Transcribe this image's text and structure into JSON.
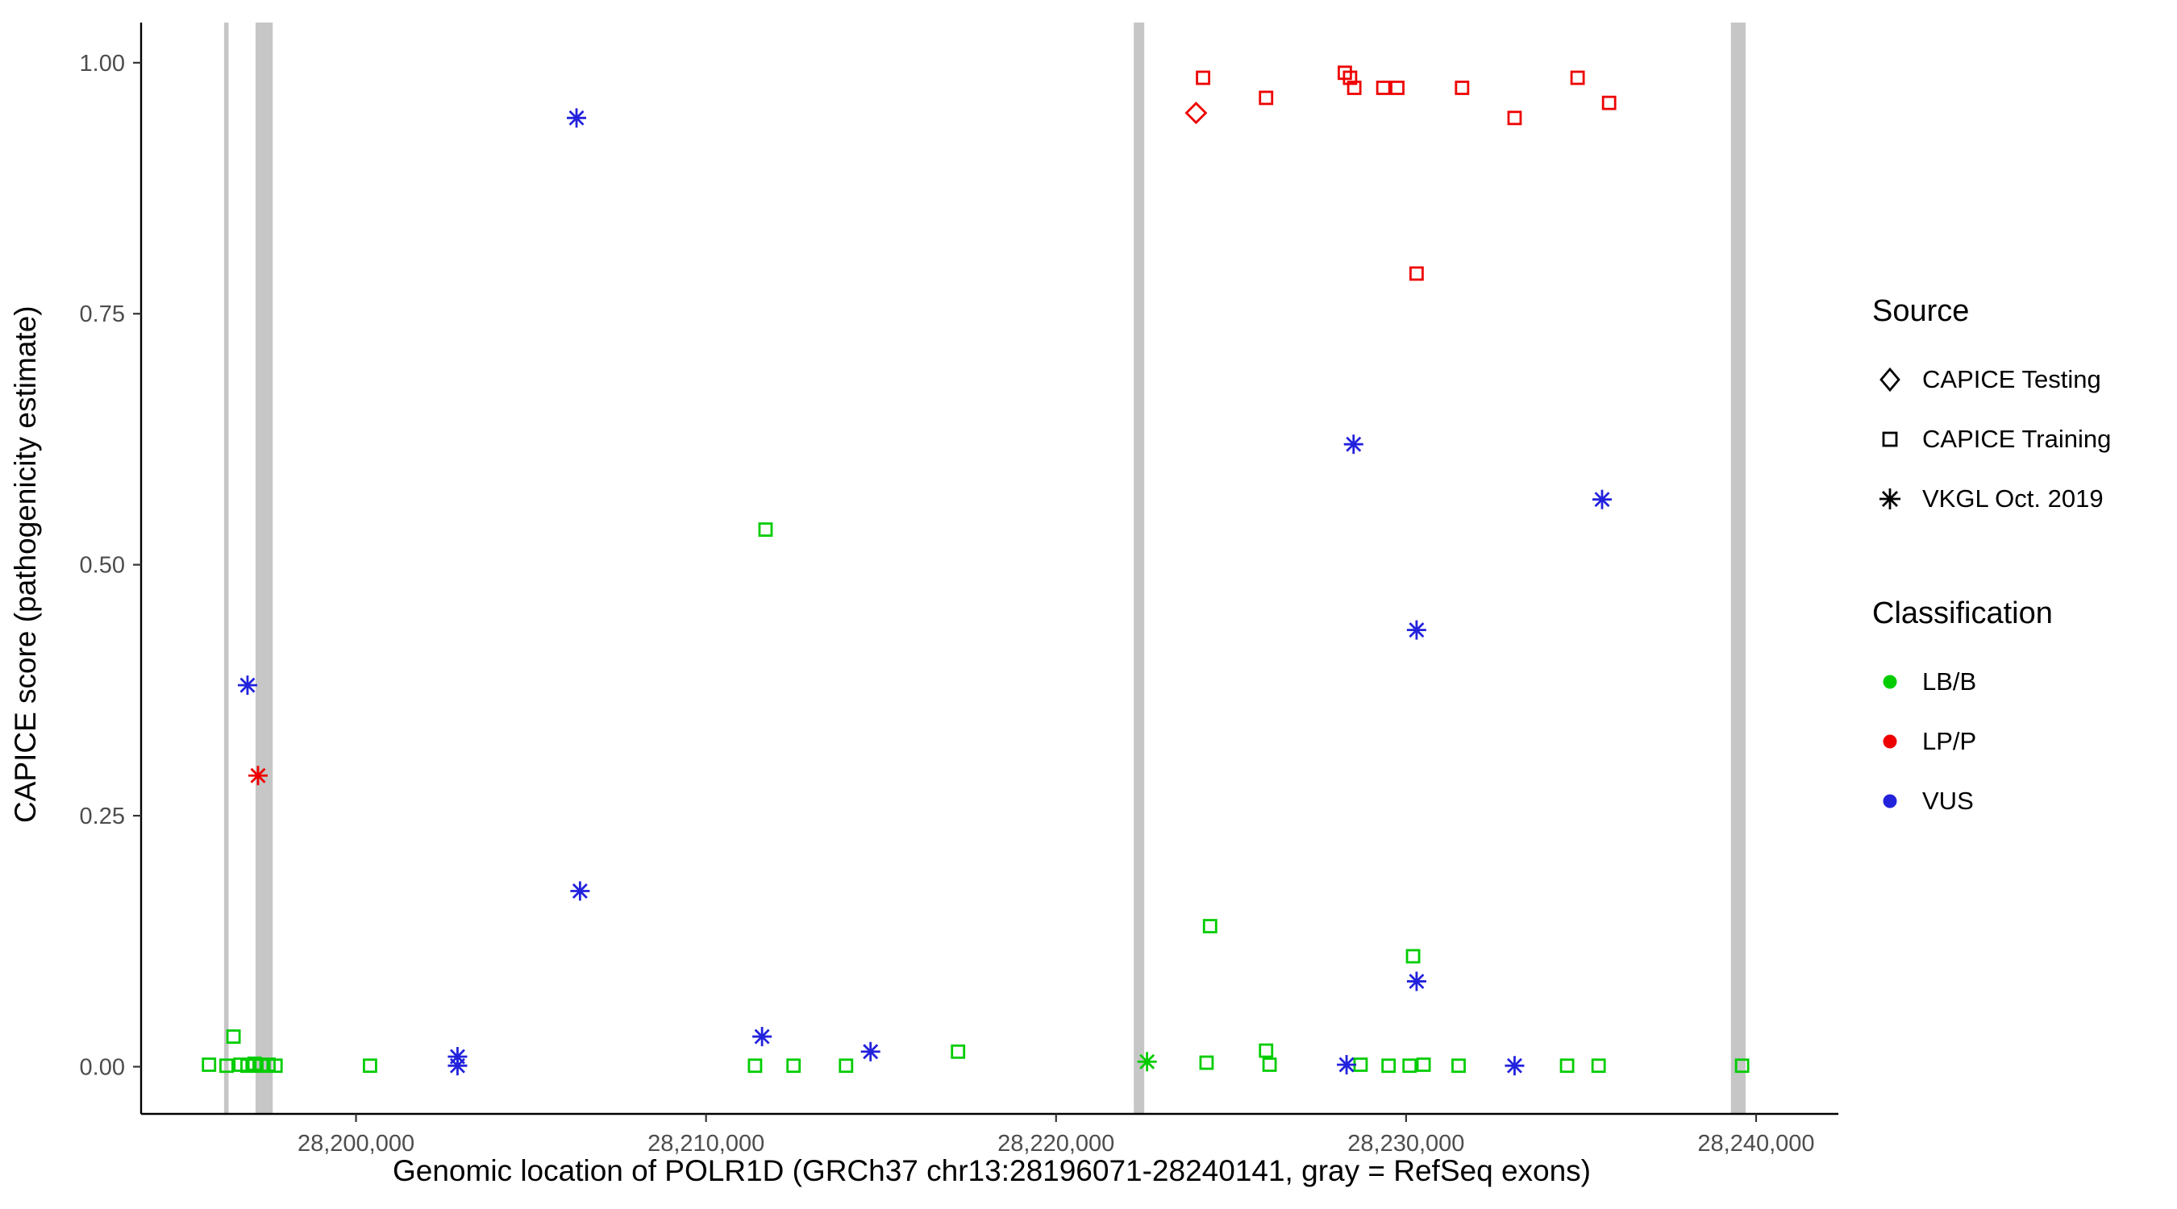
{
  "legend": {
    "source": {
      "title": "Source",
      "items": [
        {
          "label": "CAPICE Testing",
          "shape": "diamond"
        },
        {
          "label": "CAPICE Training",
          "shape": "square"
        },
        {
          "label": "VKGL Oct. 2019",
          "shape": "asterisk"
        }
      ]
    },
    "classification": {
      "title": "Classification",
      "items": [
        {
          "label": "LB/B",
          "color": "#00CC00"
        },
        {
          "label": "LP/P",
          "color": "#EE0000"
        },
        {
          "label": "VUS",
          "color": "#2222DD"
        }
      ]
    }
  },
  "chart_data": {
    "type": "scatter",
    "title": "",
    "xlabel": "Genomic location of POLR1D (GRCh37 chr13:28196071-28240141, gray = RefSeq exons)",
    "ylabel": "CAPICE score (pathogenicity estimate)",
    "xlim": [
      28193860,
      28242350
    ],
    "ylim": [
      -0.047,
      1.04
    ],
    "x_ticks": [
      28200000,
      28210000,
      28220000,
      28230000,
      28240000
    ],
    "x_tick_labels": [
      "28,200,000",
      "28,210,000",
      "28,220,000",
      "28,230,000",
      "28,240,000"
    ],
    "y_ticks": [
      0,
      0.25,
      0.5,
      0.75,
      1.0
    ],
    "y_tick_labels": [
      "0.00",
      "0.25",
      "0.50",
      "0.75",
      "1.00"
    ],
    "grid": false,
    "legend_position": "right",
    "exon_color": "#c6c6c6",
    "exons": [
      [
        28196230,
        28196360
      ],
      [
        28197130,
        28197620
      ],
      [
        28222220,
        28222520
      ],
      [
        28239280,
        28239700
      ]
    ],
    "series": [
      {
        "name": "CAPICE Testing | LP/P",
        "source": "CAPICE Testing",
        "classification": "LP/P",
        "shape": "diamond",
        "color": "#EE0000",
        "points": [
          [
            28224000,
            0.95
          ]
        ]
      },
      {
        "name": "CAPICE Training | LP/P",
        "source": "CAPICE Training",
        "classification": "LP/P",
        "shape": "square",
        "color": "#EE0000",
        "points": [
          [
            28224200,
            0.985
          ],
          [
            28226000,
            0.965
          ],
          [
            28228250,
            0.99
          ],
          [
            28228400,
            0.985
          ],
          [
            28228520,
            0.975
          ],
          [
            28229350,
            0.975
          ],
          [
            28229750,
            0.975
          ],
          [
            28231600,
            0.975
          ],
          [
            28233100,
            0.945
          ],
          [
            28234900,
            0.985
          ],
          [
            28235800,
            0.96
          ],
          [
            28230300,
            0.79
          ]
        ]
      },
      {
        "name": "CAPICE Training | LB/B",
        "source": "CAPICE Training",
        "classification": "LB/B",
        "shape": "square",
        "color": "#00CC00",
        "points": [
          [
            28211700,
            0.535
          ],
          [
            28224400,
            0.14
          ],
          [
            28230200,
            0.11
          ],
          [
            28195800,
            0.002
          ],
          [
            28196300,
            0.001
          ],
          [
            28196500,
            0.03
          ],
          [
            28196700,
            0.002
          ],
          [
            28196900,
            0.001
          ],
          [
            28197100,
            0.003
          ],
          [
            28197300,
            0.001
          ],
          [
            28197500,
            0.002
          ],
          [
            28197700,
            0.001
          ],
          [
            28200400,
            0.001
          ],
          [
            28211400,
            0.001
          ],
          [
            28212500,
            0.001
          ],
          [
            28214000,
            0.001
          ],
          [
            28217200,
            0.015
          ],
          [
            28224300,
            0.004
          ],
          [
            28226000,
            0.016
          ],
          [
            28226100,
            0.002
          ],
          [
            28228700,
            0.002
          ],
          [
            28229500,
            0.001
          ],
          [
            28230100,
            0.001
          ],
          [
            28230500,
            0.002
          ],
          [
            28231500,
            0.001
          ],
          [
            28234600,
            0.001
          ],
          [
            28235500,
            0.001
          ],
          [
            28239600,
            0.001
          ]
        ]
      },
      {
        "name": "VKGL Oct. 2019 | VUS",
        "source": "VKGL Oct. 2019",
        "classification": "VUS",
        "shape": "asterisk",
        "color": "#2222DD",
        "points": [
          [
            28206300,
            0.945
          ],
          [
            28196900,
            0.38
          ],
          [
            28206400,
            0.175
          ],
          [
            28228500,
            0.62
          ],
          [
            28235600,
            0.565
          ],
          [
            28230300,
            0.435
          ],
          [
            28230300,
            0.085
          ],
          [
            28211600,
            0.03
          ],
          [
            28214700,
            0.015
          ],
          [
            28202900,
            0.01
          ],
          [
            28202900,
            0.001
          ],
          [
            28228300,
            0.002
          ],
          [
            28233100,
            0.001
          ]
        ]
      },
      {
        "name": "VKGL Oct. 2019 | LP/P",
        "source": "VKGL Oct. 2019",
        "classification": "LP/P",
        "shape": "asterisk",
        "color": "#EE0000",
        "points": [
          [
            28197200,
            0.29
          ]
        ]
      },
      {
        "name": "VKGL Oct. 2019 | LB/B",
        "source": "VKGL Oct. 2019",
        "classification": "LB/B",
        "shape": "asterisk",
        "color": "#00CC00",
        "points": [
          [
            28222600,
            0.005
          ]
        ]
      }
    ]
  }
}
